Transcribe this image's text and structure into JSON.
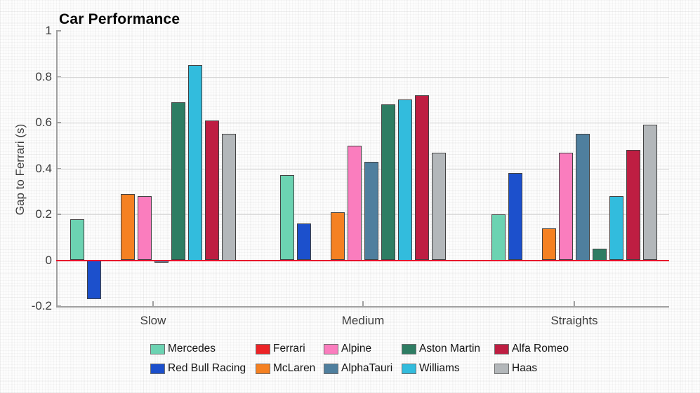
{
  "chart_data": {
    "type": "bar",
    "title": "Car Performance",
    "ylabel": "Gap to Ferrari (s)",
    "xlabel": "",
    "categories": [
      "Slow",
      "Medium",
      "Straights"
    ],
    "series": [
      {
        "name": "Mercedes",
        "color": "#6CD3B2",
        "values": [
          0.18,
          0.37,
          0.2
        ]
      },
      {
        "name": "Red Bull Racing",
        "color": "#1C50CC",
        "values": [
          -0.17,
          0.16,
          0.38
        ]
      },
      {
        "name": "Ferrari",
        "color": "#EC2326",
        "values": [
          0,
          0,
          0
        ]
      },
      {
        "name": "McLaren",
        "color": "#F58122",
        "values": [
          0.29,
          0.21,
          0.14
        ]
      },
      {
        "name": "Alpine",
        "color": "#FA7DBE",
        "values": [
          0.28,
          0.5,
          0.47
        ]
      },
      {
        "name": "AlphaTauri",
        "color": "#4F7F9E",
        "values": [
          -0.01,
          0.43,
          0.55
        ]
      },
      {
        "name": "Aston Martin",
        "color": "#2E7D63",
        "values": [
          0.69,
          0.68,
          0.05
        ]
      },
      {
        "name": "Williams",
        "color": "#32BCDD",
        "values": [
          0.85,
          0.7,
          0.28
        ]
      },
      {
        "name": "Alfa Romeo",
        "color": "#BE1E42",
        "values": [
          0.61,
          0.72,
          0.48
        ]
      },
      {
        "name": "Haas",
        "color": "#B3B7BA",
        "values": [
          0.55,
          0.47,
          0.59
        ]
      }
    ],
    "y_ticks": [
      1,
      0.8,
      0.6,
      0.4,
      0.2,
      0,
      -0.2
    ],
    "ylim": [
      -0.2,
      1
    ],
    "grid": true,
    "legend_position": "bottom",
    "legend_rows": 2,
    "zero_line_color": "#E8112D",
    "axis_color": "#a0a0a0",
    "grid_color": "#d6d6d6",
    "bar_border_color": "#424242"
  }
}
